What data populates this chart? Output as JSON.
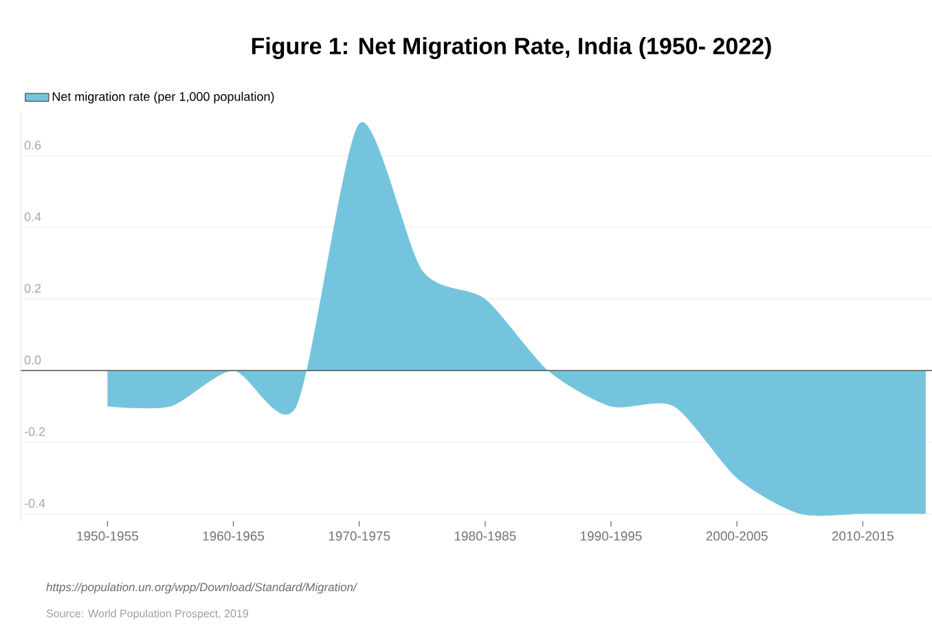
{
  "chart_data": {
    "type": "area",
    "title": "Figure 1: Net Migration Rate, India (1950- 2022)",
    "categories": [
      "1950-1955",
      null,
      "1960-1965",
      null,
      "1970-1975",
      null,
      "1980-1985",
      null,
      "1990-1995",
      null,
      "2000-2005",
      null,
      "2010-2015",
      null
    ],
    "series": [
      {
        "name": "Net migration rate (per 1,000 population)",
        "color": "#75c4de",
        "values": [
          -0.1,
          -0.1,
          0.0,
          -0.1,
          0.69,
          0.28,
          0.2,
          0.0,
          -0.1,
          -0.1,
          -0.3,
          -0.4,
          -0.4,
          -0.4
        ]
      }
    ],
    "ylim": [
      -0.42,
      0.72
    ],
    "yticks": [
      {
        "value": -0.4,
        "label": "-0.4"
      },
      {
        "value": -0.2,
        "label": "-0.2"
      },
      {
        "value": 0,
        "label": "0.0"
      },
      {
        "value": 0.2,
        "label": "0.2"
      },
      {
        "value": 0.4,
        "label": "0.4"
      },
      {
        "value": 0.6,
        "label": "0.6"
      }
    ],
    "grid": "y",
    "legend": "top left",
    "annotations": [
      "https://population.un.org/wpp/Download/Standard/Migration/",
      "Source: World Population Prospect, 2019"
    ]
  }
}
